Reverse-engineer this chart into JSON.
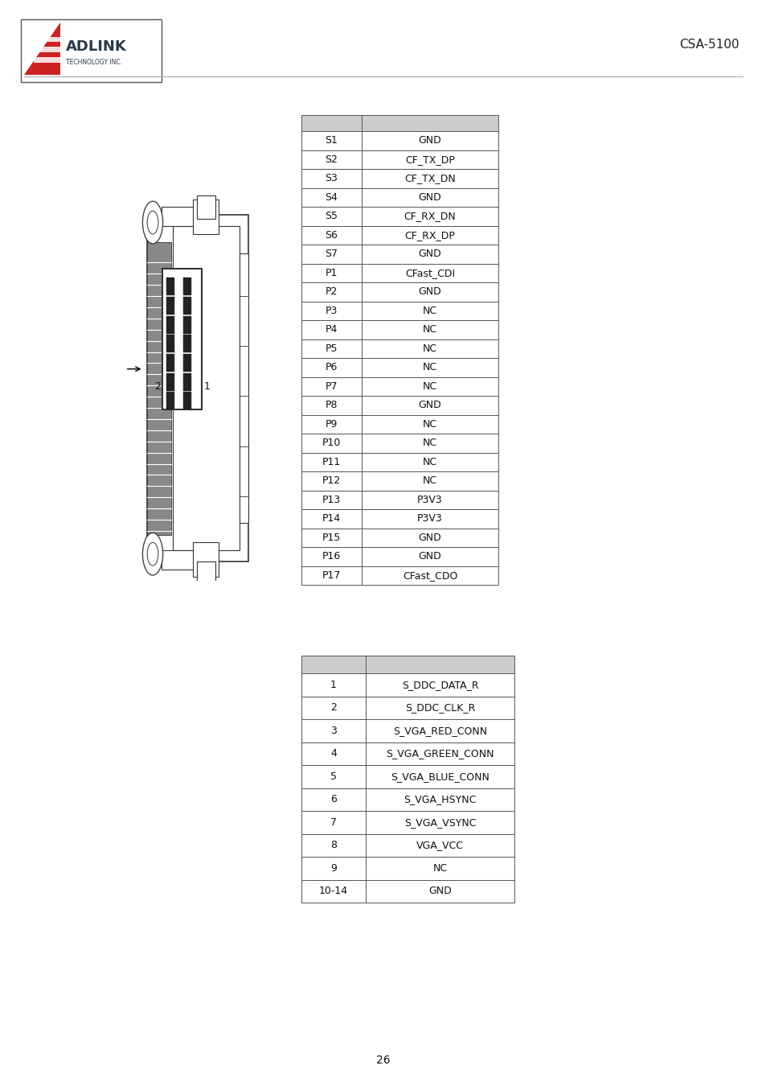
{
  "page_number": "26",
  "header_text": "CSA-5100",
  "background_color": "#ffffff",
  "table1_rows": [
    [
      "S1",
      "GND"
    ],
    [
      "S2",
      "CF_TX_DP"
    ],
    [
      "S3",
      "CF_TX_DN"
    ],
    [
      "S4",
      "GND"
    ],
    [
      "S5",
      "CF_RX_DN"
    ],
    [
      "S6",
      "CF_RX_DP"
    ],
    [
      "S7",
      "GND"
    ],
    [
      "P1",
      "CFast_CDI"
    ],
    [
      "P2",
      "GND"
    ],
    [
      "P3",
      "NC"
    ],
    [
      "P4",
      "NC"
    ],
    [
      "P5",
      "NC"
    ],
    [
      "P6",
      "NC"
    ],
    [
      "P7",
      "NC"
    ],
    [
      "P8",
      "GND"
    ],
    [
      "P9",
      "NC"
    ],
    [
      "P10",
      "NC"
    ],
    [
      "P11",
      "NC"
    ],
    [
      "P12",
      "NC"
    ],
    [
      "P13",
      "P3V3"
    ],
    [
      "P14",
      "P3V3"
    ],
    [
      "P15",
      "GND"
    ],
    [
      "P16",
      "GND"
    ],
    [
      "P17",
      "CFast_CDO"
    ]
  ],
  "table2_rows": [
    [
      "1",
      "S_DDC_DATA_R"
    ],
    [
      "2",
      "S_DDC_CLK_R"
    ],
    [
      "3",
      "S_VGA_RED_CONN"
    ],
    [
      "4",
      "S_VGA_GREEN_CONN"
    ],
    [
      "5",
      "S_VGA_BLUE_CONN"
    ],
    [
      "6",
      "S_VGA_HSYNC"
    ],
    [
      "7",
      "S_VGA_VSYNC"
    ],
    [
      "8",
      "VGA_VCC"
    ],
    [
      "9",
      "NC"
    ],
    [
      "10-14",
      "GND"
    ]
  ],
  "header_color": "#cccccc",
  "border_color": "#555555",
  "font_size_table": 9,
  "font_size_header": 11
}
